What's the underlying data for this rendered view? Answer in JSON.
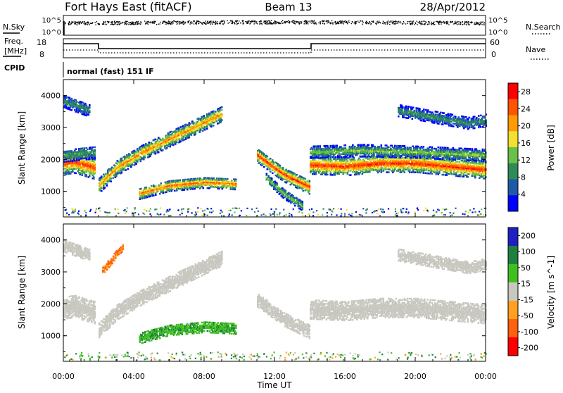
{
  "header": {
    "title": "Fort Hays East (fitACF)",
    "beam": "Beam 13",
    "date": "28/Apr/2012"
  },
  "noise_panel": {
    "left_label": "N.Sky",
    "right_label": "N.Search",
    "tick_top": "10^5",
    "tick_bottom": "10^0"
  },
  "freq_panel": {
    "left_label_line1": "Freq.",
    "left_label_line2": "[MHz]",
    "left_tick_top": "18",
    "left_tick_bottom": "8",
    "right_label": "Nave",
    "right_tick_top": "60",
    "right_tick_bottom": "0"
  },
  "cpid_panel": {
    "label": "CPID",
    "text": "normal (fast) 151 IF"
  },
  "colors": {
    "power_scale": [
      "#0000ff",
      "#1e5aa8",
      "#2e8b57",
      "#69c04a",
      "#f0e030",
      "#ff9a00",
      "#ff5500",
      "#ff0000"
    ],
    "velocity_scale": [
      "#2020c0",
      "#208040",
      "#40c020",
      "#c8c8c0",
      "#ffa020",
      "#ff6010",
      "#ff0000"
    ],
    "ground_scatter": "#c0c0b8"
  },
  "chart_data": [
    {
      "type": "heatmap",
      "title": "",
      "xlabel": "Time UT",
      "ylabel": "Slant Range [km]",
      "x_ticks": [
        "00:00",
        "04:00",
        "08:00",
        "12:00",
        "16:00",
        "20:00",
        "00:00"
      ],
      "xlim": [
        0,
        24
      ],
      "y_ticks": [
        1000,
        2000,
        3000,
        4000
      ],
      "ylim": [
        200,
        4500
      ],
      "colorbar": {
        "label": "Power [dB]",
        "ticks": [
          4,
          8,
          12,
          16,
          20,
          24,
          28
        ],
        "range": [
          0,
          30
        ]
      },
      "echo_bands": [
        {
          "t": [
            0.0,
            0.6,
            1.2,
            1.8
          ],
          "range": [
            1850,
            1900,
            1800,
            1700
          ],
          "width": 350,
          "peak": 26
        },
        {
          "t": [
            0.0,
            1.8
          ],
          "range": [
            2100,
            2200
          ],
          "width": 200,
          "peak": 12
        },
        {
          "t": [
            0.0,
            1.5
          ],
          "range": [
            3800,
            3500
          ],
          "width": 200,
          "peak": 10
        },
        {
          "t": [
            2.0,
            3.0,
            4.5,
            6.0,
            7.5,
            9.0
          ],
          "range": [
            1150,
            1700,
            2200,
            2600,
            3000,
            3400
          ],
          "width": 230,
          "peak": 22
        },
        {
          "t": [
            4.3,
            6.0,
            8.0,
            9.8
          ],
          "range": [
            900,
            1150,
            1250,
            1200
          ],
          "width": 170,
          "peak": 24
        },
        {
          "t": [
            11.0,
            12.5,
            14.0
          ],
          "range": [
            2100,
            1500,
            1100
          ],
          "width": 220,
          "peak": 26
        },
        {
          "t": [
            11.5,
            12.5,
            13.6
          ],
          "range": [
            1400,
            900,
            500
          ],
          "width": 150,
          "peak": 14
        },
        {
          "t": [
            14.0,
            16.0,
            18.0,
            20.0,
            22.0,
            24.0
          ],
          "range": [
            1800,
            1750,
            1850,
            1850,
            1750,
            1650
          ],
          "width": 280,
          "peak": 27
        },
        {
          "t": [
            14.0,
            17.0,
            20.0,
            24.0
          ],
          "range": [
            2200,
            2250,
            2200,
            2100
          ],
          "width": 180,
          "peak": 14
        },
        {
          "t": [
            19.0,
            21.0,
            23.0,
            24.0
          ],
          "range": [
            3500,
            3300,
            3100,
            3200
          ],
          "width": 180,
          "peak": 10
        }
      ]
    },
    {
      "type": "heatmap",
      "title": "",
      "xlabel": "Time UT",
      "ylabel": "Slant Range [km]",
      "x_ticks": [
        "00:00",
        "04:00",
        "08:00",
        "12:00",
        "16:00",
        "20:00",
        "00:00"
      ],
      "xlim": [
        0,
        24
      ],
      "y_ticks": [
        1000,
        2000,
        3000,
        4000
      ],
      "ylim": [
        200,
        4500
      ],
      "colorbar": {
        "label": "Velocity [m s^-1]",
        "ticks": [
          200,
          100,
          50,
          15,
          -15,
          -50,
          -100,
          -200
        ],
        "range": [
          -250,
          250
        ]
      },
      "echo_bands": [
        {
          "t": [
            0.0,
            0.6,
            1.2,
            1.8
          ],
          "range": [
            1850,
            1900,
            1800,
            1700
          ],
          "width": 350,
          "vel": 0
        },
        {
          "t": [
            0.0,
            1.5
          ],
          "range": [
            3800,
            3500
          ],
          "width": 200,
          "vel": 0
        },
        {
          "t": [
            2.0,
            3.0,
            4.5,
            6.0,
            7.5,
            9.0
          ],
          "range": [
            1150,
            1700,
            2200,
            2600,
            3000,
            3400
          ],
          "width": 230,
          "vel": 0
        },
        {
          "t": [
            2.2,
            3.4
          ],
          "range": [
            3000,
            3800
          ],
          "width": 120,
          "vel": -60
        },
        {
          "t": [
            4.3,
            6.0,
            8.0,
            9.8
          ],
          "range": [
            900,
            1150,
            1250,
            1200
          ],
          "width": 170,
          "vel": 40
        },
        {
          "t": [
            11.0,
            12.5,
            14.0
          ],
          "range": [
            2100,
            1500,
            1100
          ],
          "width": 220,
          "vel": 0
        },
        {
          "t": [
            14.0,
            16.0,
            18.0,
            20.0,
            22.0,
            24.0
          ],
          "range": [
            1800,
            1750,
            1850,
            1850,
            1750,
            1650
          ],
          "width": 300,
          "vel": 0
        },
        {
          "t": [
            19.0,
            21.0,
            23.0,
            24.0
          ],
          "range": [
            3500,
            3300,
            3100,
            3200
          ],
          "width": 180,
          "vel": 0
        }
      ]
    }
  ]
}
